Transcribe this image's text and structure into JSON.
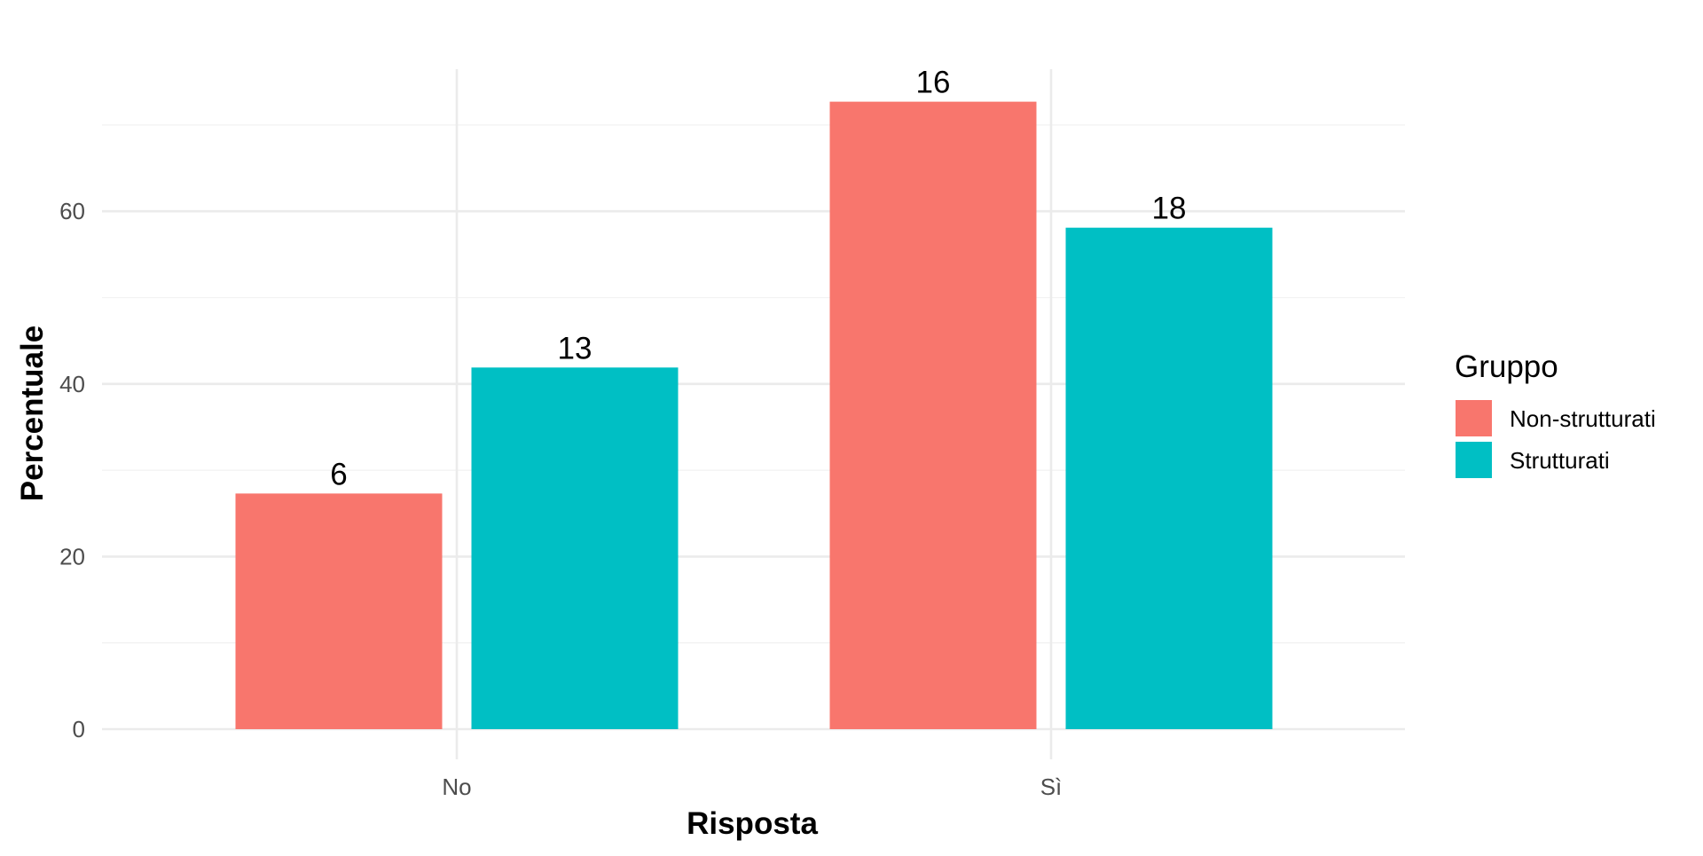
{
  "chart_data": {
    "type": "bar",
    "categories": [
      "No",
      "Sì"
    ],
    "series": [
      {
        "name": "Non-strutturati",
        "values": [
          27.3,
          72.7
        ],
        "labels": [
          "6",
          "16"
        ],
        "color": "#F8766D"
      },
      {
        "name": "Strutturati",
        "values": [
          41.9,
          58.1
        ],
        "labels": [
          "13",
          "18"
        ],
        "color": "#00BFC4"
      }
    ],
    "xlabel": "Risposta",
    "ylabel": "Percentuale",
    "ylim": [
      0,
      76.3
    ],
    "yticks": [
      0,
      20,
      40,
      60
    ],
    "legend": {
      "title": "Gruppo",
      "position": "right"
    },
    "grid": true,
    "title": ""
  }
}
